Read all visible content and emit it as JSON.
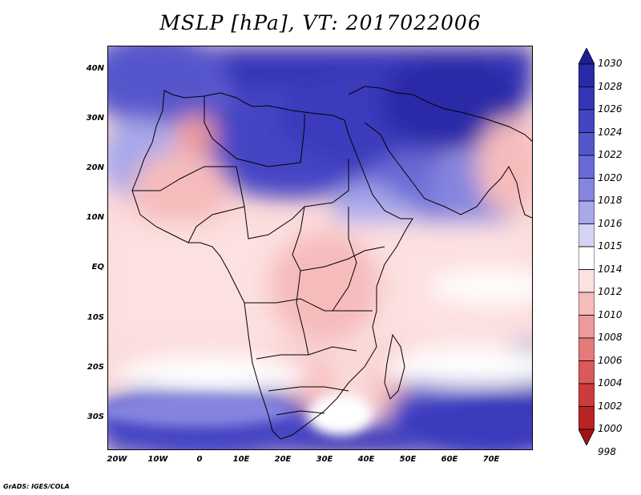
{
  "title": "MSLP [hPa], VT: 2017022006",
  "credit": "GrADS: IGES/COLA",
  "map": {
    "x_ticks": [
      "20W",
      "10W",
      "0",
      "10E",
      "20E",
      "30E",
      "40E",
      "50E",
      "60E",
      "70E"
    ],
    "y_ticks": [
      "40N",
      "30N",
      "20N",
      "10N",
      "EQ",
      "10S",
      "20S",
      "30S"
    ]
  },
  "colorbar": {
    "levels": [
      "1030",
      "1028",
      "1026",
      "1024",
      "1022",
      "1020",
      "1018",
      "1016",
      "1015",
      "1014",
      "1012",
      "1010",
      "1008",
      "1006",
      "1004",
      "1002",
      "1000",
      "998"
    ],
    "colors": [
      "#1e1e96",
      "#2a2aa8",
      "#3535b8",
      "#4545c4",
      "#5656cc",
      "#6a6ad6",
      "#8585df",
      "#a8a8ea",
      "#d4d4f5",
      "#ffffff",
      "#fde0e0",
      "#f6bcbc",
      "#ee9a9a",
      "#e47a7a",
      "#da5a5a",
      "#cc3c3c",
      "#b82424",
      "#a01414"
    ]
  }
}
